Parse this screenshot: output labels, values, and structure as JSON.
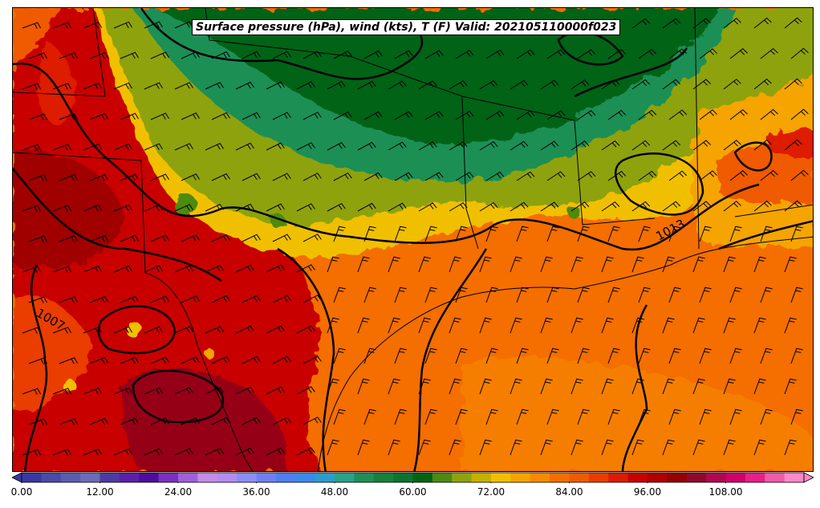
{
  "title": "Surface pressure (hPa), wind (kts), T (F) Valid: 202105110000f023",
  "contour_labels": [
    "1013",
    "1007"
  ],
  "colorbar": {
    "tick_labels": [
      "0.00",
      "12.00",
      "24.00",
      "36.00",
      "48.00",
      "60.00",
      "72.00",
      "84.00",
      "96.00",
      "108.00"
    ],
    "colors": [
      "#3a37a3",
      "#4b4aa8",
      "#5a5cb0",
      "#6b6bb8",
      "#4c3ba1",
      "#5b1fa9",
      "#4e0d9c",
      "#7b2fc0",
      "#9f5fd8",
      "#c58be8",
      "#b48cf0",
      "#8c8cf5",
      "#6f7ff3",
      "#4f7ef0",
      "#3b8ae8",
      "#2c9ccc",
      "#2aa389",
      "#1f8f55",
      "#16803c",
      "#0e7230",
      "#056313",
      "#4d8a10",
      "#8ea210",
      "#c6b000",
      "#f0c000",
      "#f5a400",
      "#f68a00",
      "#f46e00",
      "#f05a00",
      "#ea3c00",
      "#dd1a00",
      "#c80000",
      "#b00000",
      "#960000",
      "#8e0a2a",
      "#b0084f",
      "#d0006a",
      "#e61f8a",
      "#f05aa8",
      "#ff88c8"
    ],
    "vmin": 0,
    "vmax": 120,
    "ticks": [
      0,
      12,
      24,
      36,
      48,
      60,
      72,
      84,
      96,
      108
    ]
  }
}
